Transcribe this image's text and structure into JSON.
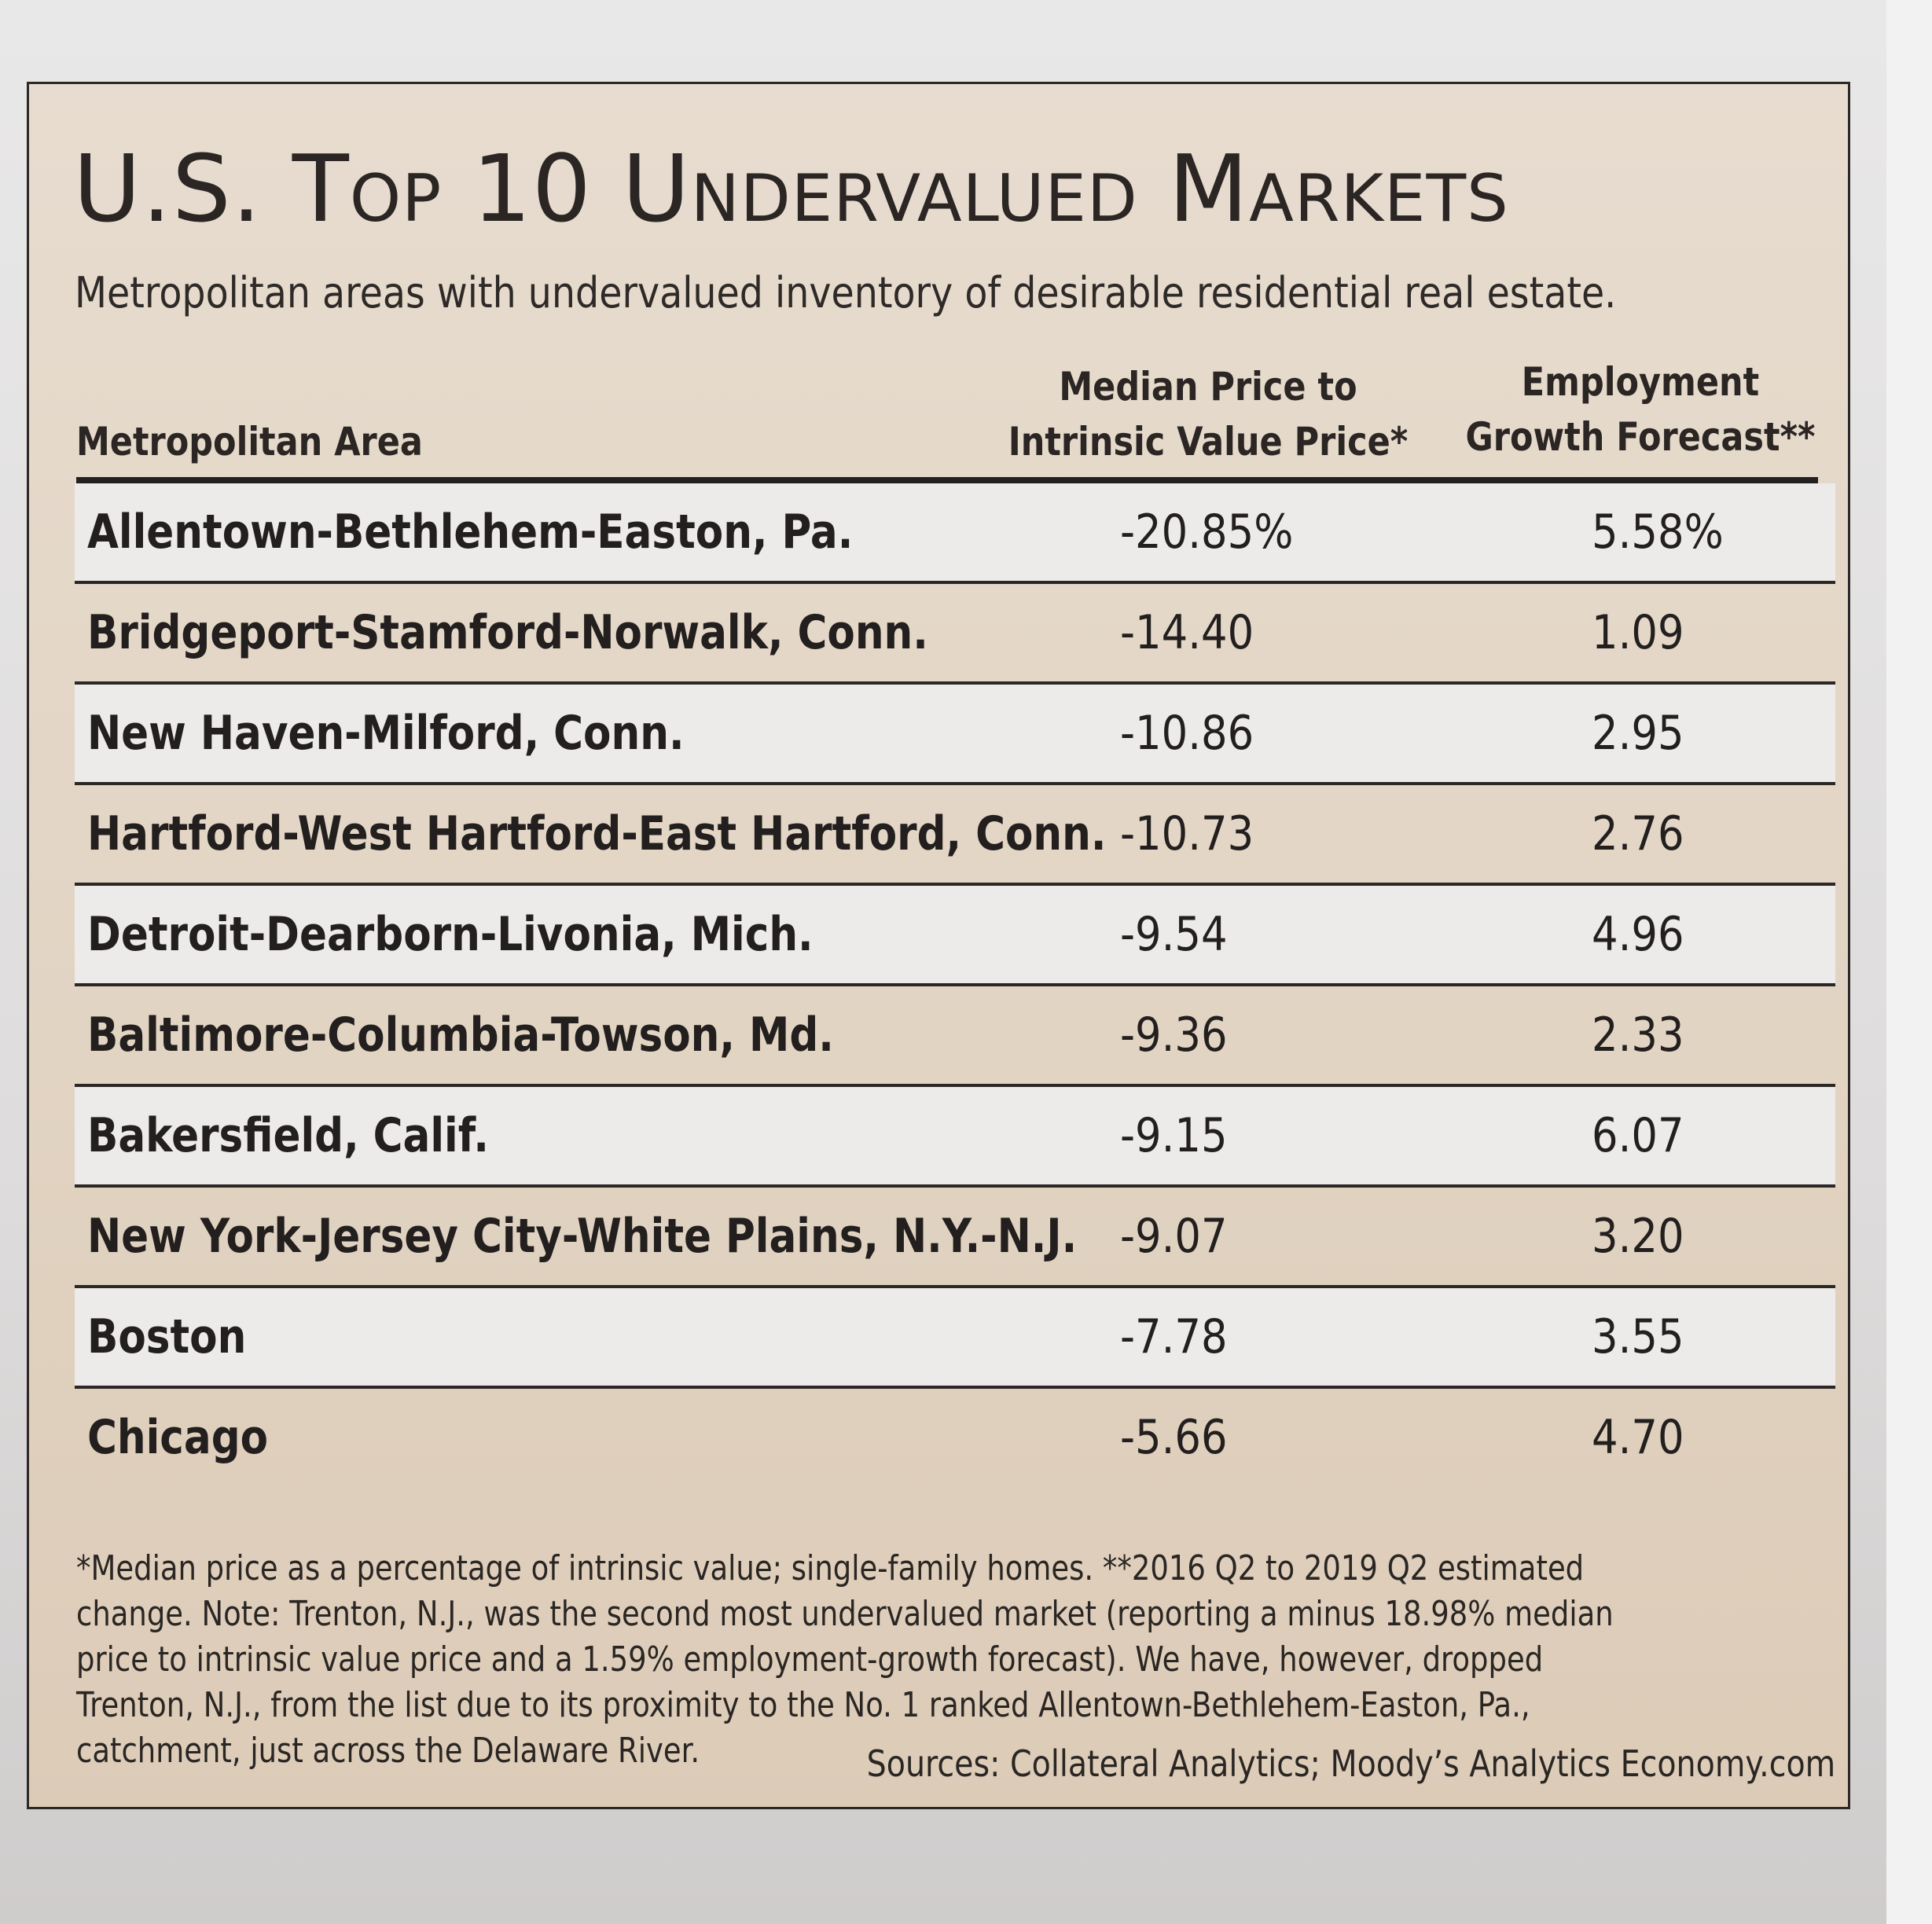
{
  "title": "U.S. Top 10 Undervalued Markets",
  "subtitle": "Metropolitan areas with undervalued inventory of desirable residential real estate.",
  "columns": {
    "area": "Metropolitan Area",
    "price_line1": "Median Price to",
    "price_line2": "Intrinsic Value Price*",
    "emp_line1": "Employment",
    "emp_line2": "Growth Forecast**"
  },
  "rows": [
    {
      "area": "Allentown-Bethlehem-Easton, Pa.",
      "price": "-20.85%",
      "emp": "5.58%"
    },
    {
      "area": "Bridgeport-Stamford-Norwalk, Conn.",
      "price": "-14.40",
      "emp": "1.09"
    },
    {
      "area": "New Haven-Milford, Conn.",
      "price": "-10.86",
      "emp": "2.95"
    },
    {
      "area": "Hartford-West Hartford-East Hartford, Conn.",
      "price": "-10.73",
      "emp": "2.76"
    },
    {
      "area": "Detroit-Dearborn-Livonia, Mich.",
      "price": "-9.54",
      "emp": "4.96"
    },
    {
      "area": "Baltimore-Columbia-Towson, Md.",
      "price": "-9.36",
      "emp": "2.33"
    },
    {
      "area": "Bakersfield, Calif.",
      "price": "-9.15",
      "emp": "6.07"
    },
    {
      "area": "New York-Jersey City-White Plains, N.Y.-N.J.",
      "price": "-9.07",
      "emp": "3.20"
    },
    {
      "area": "Boston",
      "price": "-7.78",
      "emp": "3.55"
    },
    {
      "area": "Chicago",
      "price": "-5.66",
      "emp": "4.70"
    }
  ],
  "footnote": "*Median price as a percentage of intrinsic value; single-family homes. **2016 Q2 to 2019 Q2 estimated change. Note: Trenton, N.J., was the second most undervalued market (reporting a minus 18.98% median price to intrinsic value price and a 1.59% employment-growth forecast). We have, however, dropped Trenton, N.J., from the list due to its proximity to the No. 1 ranked Allentown-Bethlehem-Easton, Pa., catchment, just across the Delaware River.",
  "sources": "Sources: Collateral Analytics; Moody’s Analytics Economy.com"
}
